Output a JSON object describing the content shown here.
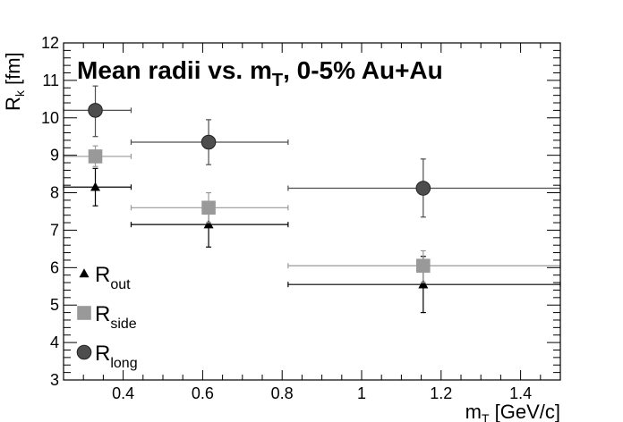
{
  "chart_data": {
    "type": "scatter",
    "title": {
      "main": "Mean radii vs. m",
      "sub": "T",
      "rest": ", 0-5% Au+Au"
    },
    "xlabel": {
      "main": "m",
      "sub": "T",
      "rest": " [GeV/c]"
    },
    "ylabel": {
      "main": "R",
      "sub": "k",
      "rest": " [fm]"
    },
    "xlim": [
      0.25,
      1.5
    ],
    "ylim": [
      3,
      12
    ],
    "xticks": [
      0.4,
      0.6,
      0.8,
      1,
      1.2,
      1.4
    ],
    "xtick_labels": [
      "0.4",
      "0.6",
      "0.8",
      "1",
      "1.2",
      "1.4"
    ],
    "yticks": [
      3,
      4,
      5,
      6,
      7,
      8,
      9,
      10,
      11,
      12
    ],
    "ytick_labels": [
      "3",
      "4",
      "5",
      "6",
      "7",
      "8",
      "9",
      "10",
      "11",
      "12"
    ],
    "grid": false,
    "legend_position": "bottom-left",
    "series": [
      {
        "name": "R",
        "name_sub": "out",
        "marker": "triangle",
        "color": "#000000",
        "points": [
          {
            "x": 0.33,
            "y": 8.15,
            "xlo": 0.25,
            "xhi": 0.42,
            "ylo": 7.65,
            "yhi": 8.65
          },
          {
            "x": 0.615,
            "y": 7.15,
            "xlo": 0.42,
            "xhi": 0.815,
            "ylo": 6.55,
            "yhi": 7.75
          },
          {
            "x": 1.155,
            "y": 5.55,
            "xlo": 0.815,
            "xhi": 1.5,
            "ylo": 4.8,
            "yhi": 6.3
          }
        ]
      },
      {
        "name": "R",
        "name_sub": "side",
        "marker": "square",
        "color": "#999999",
        "points": [
          {
            "x": 0.33,
            "y": 8.97,
            "xlo": 0.25,
            "xhi": 0.42,
            "ylo": 8.7,
            "yhi": 9.25
          },
          {
            "x": 0.615,
            "y": 7.6,
            "xlo": 0.42,
            "xhi": 0.815,
            "ylo": 7.2,
            "yhi": 8.0
          },
          {
            "x": 1.155,
            "y": 6.05,
            "xlo": 0.815,
            "xhi": 1.5,
            "ylo": 5.6,
            "yhi": 6.45
          }
        ]
      },
      {
        "name": "R",
        "name_sub": "long",
        "marker": "circle",
        "color": "#4d4d4d",
        "points": [
          {
            "x": 0.33,
            "y": 10.2,
            "xlo": 0.25,
            "xhi": 0.42,
            "ylo": 9.5,
            "yhi": 10.85
          },
          {
            "x": 0.615,
            "y": 9.35,
            "xlo": 0.42,
            "xhi": 0.815,
            "ylo": 8.75,
            "yhi": 9.95
          },
          {
            "x": 1.155,
            "y": 8.12,
            "xlo": 0.815,
            "xhi": 1.5,
            "ylo": 7.35,
            "yhi": 8.9
          }
        ]
      }
    ]
  }
}
